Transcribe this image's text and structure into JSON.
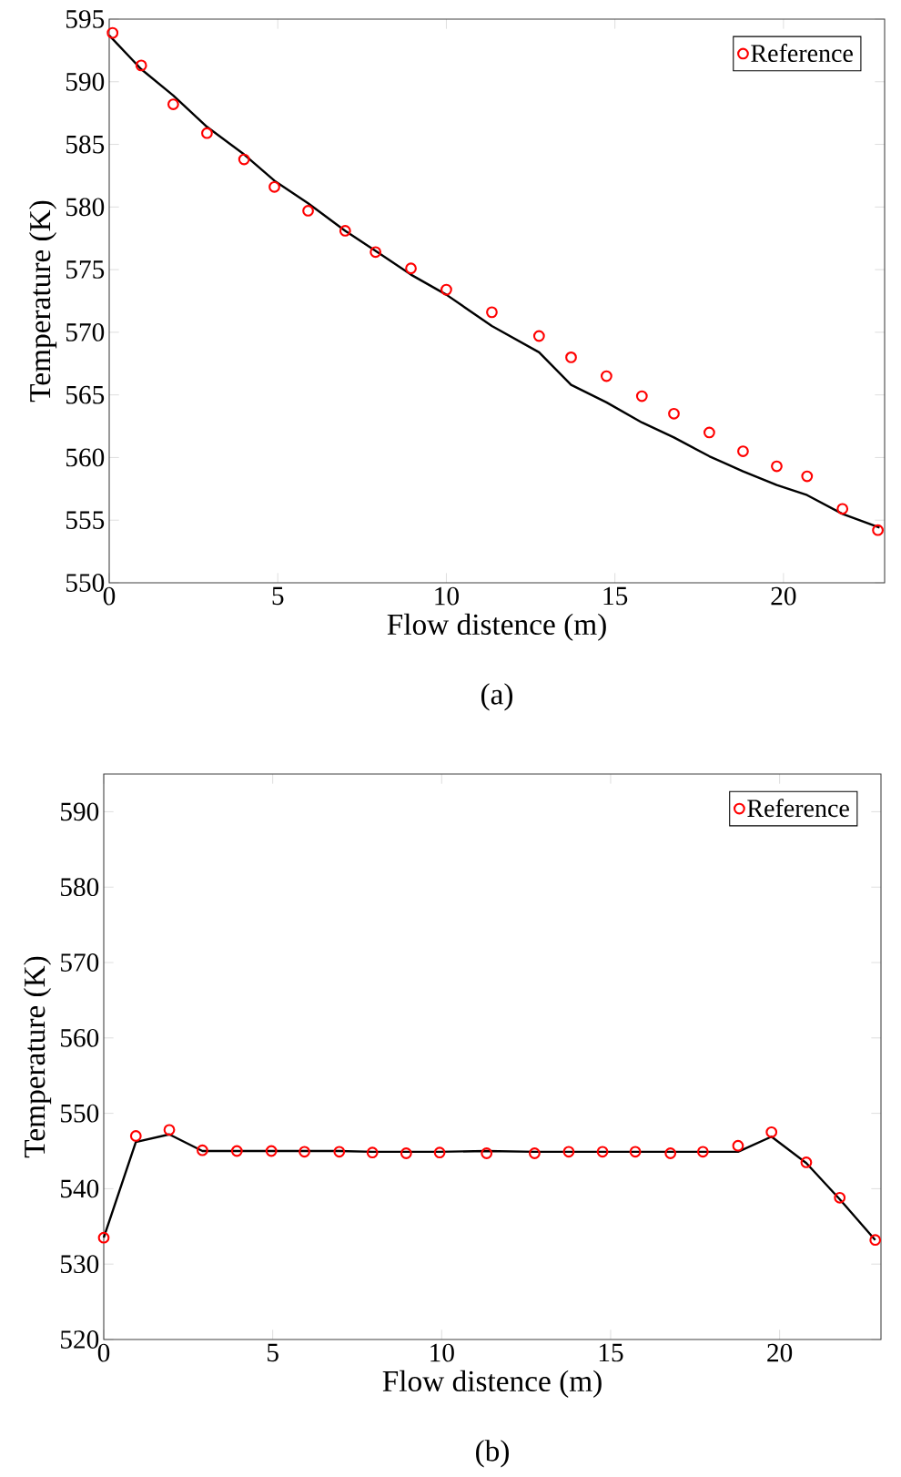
{
  "chart_data": [
    {
      "type": "line",
      "xlabel": "Flow distence (m)",
      "ylabel": "Temperature (K)",
      "annotations": [
        "(a)"
      ],
      "xlim": [
        0,
        23
      ],
      "ylim": [
        550,
        595
      ],
      "xticks": [
        0,
        5,
        10,
        15,
        20
      ],
      "yticks": [
        550,
        555,
        560,
        565,
        570,
        575,
        580,
        585,
        590,
        595
      ],
      "legend": "top right",
      "grid": false,
      "series": [
        {
          "name": "Reference",
          "type": "scatter",
          "marker": "circle",
          "color": "#ff0000",
          "x": [
            0.1,
            0.95,
            1.9,
            2.9,
            4.0,
            4.9,
            5.9,
            7.0,
            7.9,
            8.95,
            10.0,
            11.35,
            12.75,
            13.7,
            14.75,
            15.8,
            16.75,
            17.8,
            18.8,
            19.8,
            20.7,
            21.75,
            22.8
          ],
          "values": [
            593.9,
            591.3,
            588.2,
            585.9,
            583.8,
            581.6,
            579.7,
            578.1,
            576.4,
            575.1,
            573.4,
            571.6,
            569.7,
            568.0,
            566.5,
            564.9,
            563.5,
            562.0,
            560.5,
            559.3,
            558.5,
            555.9,
            554.2
          ]
        },
        {
          "type": "line",
          "color": "#000000",
          "x": [
            0,
            0.95,
            1.9,
            2.9,
            4.0,
            4.9,
            5.9,
            7.0,
            7.9,
            8.95,
            10.0,
            11.35,
            12.75,
            13.7,
            14.75,
            15.8,
            16.75,
            17.8,
            18.8,
            19.8,
            20.7,
            21.75,
            22.85
          ],
          "values": [
            593.7,
            591.0,
            588.9,
            586.4,
            584.2,
            582.1,
            580.3,
            578.1,
            576.5,
            574.6,
            573.0,
            570.5,
            568.4,
            565.8,
            564.4,
            562.8,
            561.6,
            560.1,
            558.9,
            557.8,
            557.0,
            555.5,
            554.4
          ]
        }
      ]
    },
    {
      "type": "line",
      "xlabel": "Flow distence (m)",
      "ylabel": "Temperature (K)",
      "annotations": [
        "(b)"
      ],
      "xlim": [
        0,
        23
      ],
      "ylim": [
        520,
        595
      ],
      "xticks": [
        0,
        5,
        10,
        15,
        20
      ],
      "yticks": [
        520,
        530,
        540,
        550,
        560,
        570,
        580,
        590
      ],
      "legend": "top right",
      "grid": false,
      "series": [
        {
          "name": "Reference",
          "type": "scatter",
          "marker": "circle",
          "color": "#ff0000",
          "x": [
            0,
            0.95,
            1.94,
            2.92,
            3.94,
            4.96,
            5.94,
            6.97,
            7.95,
            8.95,
            9.94,
            11.33,
            12.75,
            13.76,
            14.76,
            15.73,
            16.77,
            17.73,
            18.77,
            19.76,
            20.79,
            21.78,
            22.83
          ],
          "values": [
            533.5,
            547.0,
            547.8,
            545.1,
            545.0,
            545.0,
            544.9,
            544.9,
            544.8,
            544.7,
            544.8,
            544.7,
            544.7,
            544.9,
            544.9,
            544.9,
            544.7,
            544.9,
            545.7,
            547.5,
            543.5,
            538.8,
            533.2
          ]
        },
        {
          "type": "line",
          "color": "#000000",
          "x": [
            0,
            0.95,
            1.94,
            2.92,
            3.94,
            4.96,
            5.94,
            6.97,
            7.95,
            8.95,
            9.94,
            11.33,
            12.75,
            13.76,
            14.76,
            15.73,
            16.77,
            17.73,
            18.77,
            19.76,
            20.79,
            21.78,
            22.83
          ],
          "values": [
            533.5,
            546.2,
            547.2,
            545.0,
            545.0,
            545.0,
            545.0,
            545.0,
            544.9,
            544.9,
            544.9,
            545.0,
            544.9,
            544.9,
            544.9,
            544.9,
            544.9,
            544.9,
            544.9,
            546.9,
            543.4,
            538.6,
            533.2
          ]
        }
      ]
    }
  ]
}
